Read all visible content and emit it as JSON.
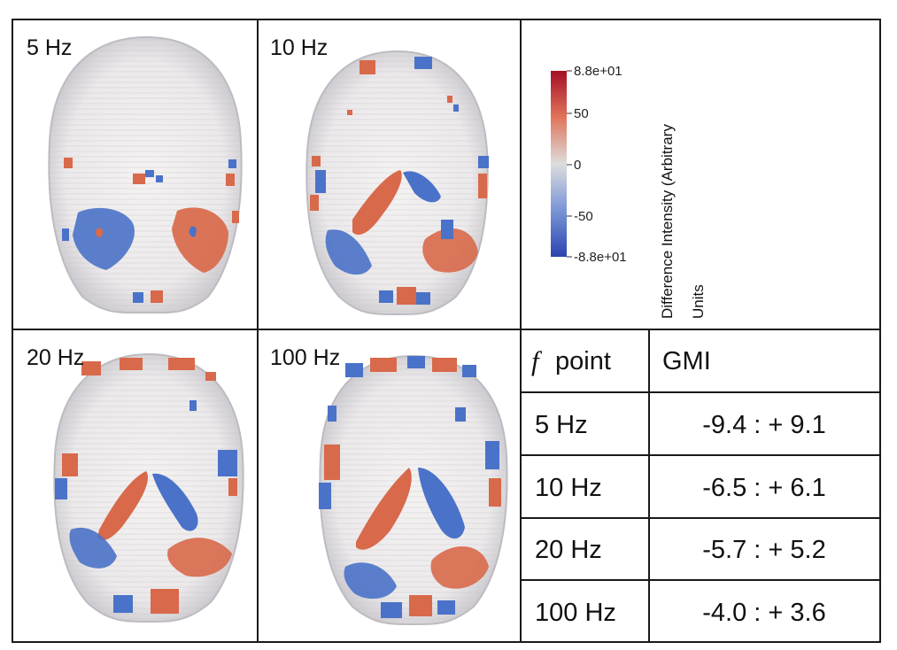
{
  "panels": [
    {
      "id": "p5",
      "label": "5 Hz"
    },
    {
      "id": "p10",
      "label": "10 Hz"
    },
    {
      "id": "p20",
      "label": "20 Hz"
    },
    {
      "id": "p100",
      "label": "100 Hz"
    }
  ],
  "colorbar": {
    "title_line1": "Difference Intensity (Arbitrary",
    "title_line2": "Units",
    "ticks": [
      "8.8e+01",
      "50",
      "0",
      "-50",
      "-8.8e+01"
    ],
    "range": [
      -88,
      88
    ],
    "colors": {
      "max": "#b2182b",
      "mid": "#dddddd",
      "min": "#2c4bb8"
    }
  },
  "table": {
    "header": {
      "f_symbol": "f",
      "f_label": "point",
      "gmi_label": "GMI"
    },
    "rows": [
      {
        "freq": "5 Hz",
        "gmi": "-9.4 : + 9.1"
      },
      {
        "freq": "10 Hz",
        "gmi": "-6.5 : + 6.1"
      },
      {
        "freq": "20 Hz",
        "gmi": "-5.7 : + 5.2"
      },
      {
        "freq": "100 Hz",
        "gmi": "-4.0 : + 3.6"
      }
    ]
  },
  "colors": {
    "positive": "#d8694a",
    "negative": "#4a72c8",
    "shell": "#d9d9dc"
  }
}
